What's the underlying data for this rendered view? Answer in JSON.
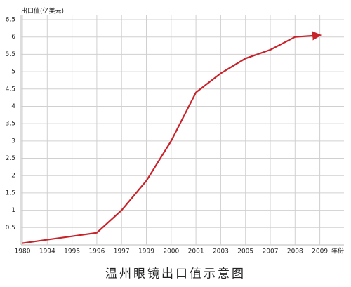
{
  "chart_data": {
    "type": "line",
    "title": "温州眼镜出口值示意图",
    "y_label": "出口值(亿美元)",
    "x_label": "年份",
    "categories": [
      "1980",
      "1994",
      "1995",
      "1996",
      "1997",
      "1999",
      "2000",
      "2001",
      "2003",
      "2005",
      "2007",
      "2008",
      "2009"
    ],
    "series": [
      {
        "name": "出口值",
        "color": "#c8232b",
        "values": [
          0.05,
          0.15,
          0.25,
          0.35,
          1.0,
          1.85,
          3.0,
          4.4,
          4.95,
          5.38,
          5.63,
          6.0,
          6.05
        ]
      }
    ],
    "ylim": [
      0,
      6.5
    ],
    "yticks": [
      0.5,
      1,
      1.5,
      2,
      2.5,
      3,
      3.5,
      4,
      4.5,
      5,
      5.5,
      6,
      6.5
    ],
    "grid": true
  }
}
